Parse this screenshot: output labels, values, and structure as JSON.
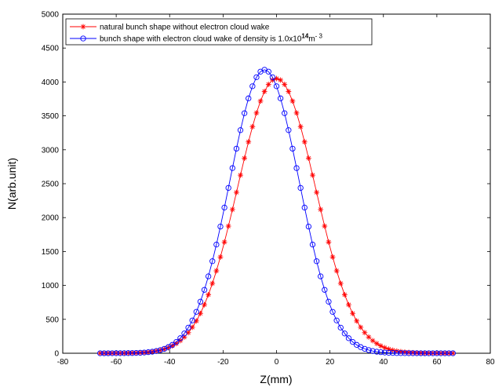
{
  "chart_data": {
    "type": "line",
    "title": "",
    "xlabel": "Z(mm)",
    "ylabel": "N(arb.unit)",
    "xlim": [
      -80,
      80
    ],
    "ylim": [
      0,
      5000
    ],
    "xticks": [
      -80,
      -60,
      -40,
      -20,
      0,
      20,
      40,
      60,
      80
    ],
    "yticks": [
      0,
      500,
      1000,
      1500,
      2000,
      2500,
      3000,
      3500,
      4000,
      4500,
      5000
    ],
    "grid": false,
    "legend_position": "top-left",
    "series": [
      {
        "name": "natural bunch shape without electron cloud wake",
        "color": "#ff0000",
        "marker": "asterisk",
        "center": 0,
        "peak": 4050,
        "sigma": 14.5,
        "x_range": [
          -66,
          66
        ],
        "step": 1.5
      },
      {
        "name_parts": {
          "prefix": "bunch shape with electron cloud wake of density is 1.0x10",
          "sup1": "14",
          "mid": "m",
          "sup2": "- 3"
        },
        "color": "#0000ff",
        "marker": "circle",
        "center": -4.5,
        "peak": 4180,
        "sigma": 13.0,
        "x_range": [
          -66,
          66
        ],
        "step": 1.5
      }
    ]
  }
}
